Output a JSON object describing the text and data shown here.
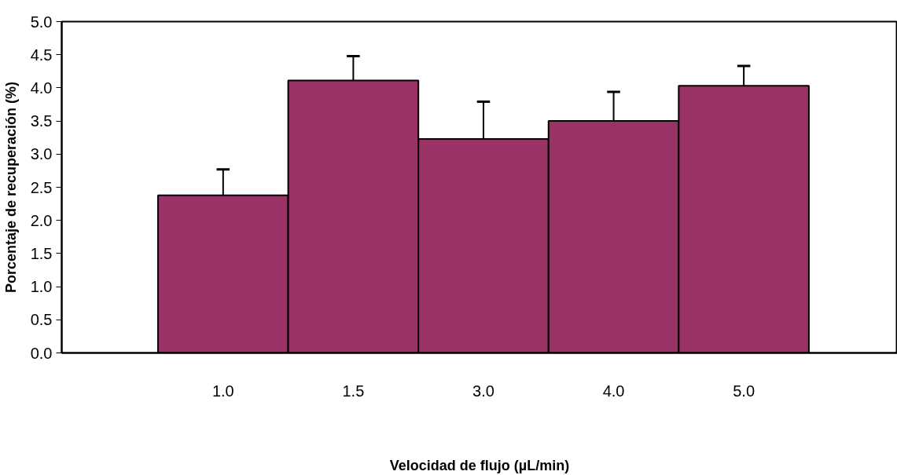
{
  "chart_data": {
    "type": "bar",
    "xlabel": "Velocidad de flujo (µL/min)",
    "ylabel": "Porcentaje de recuperación (%)",
    "categories": [
      "1.0",
      "1.5",
      "3.0",
      "4.0",
      "5.0"
    ],
    "values": [
      2.38,
      4.11,
      3.23,
      3.5,
      4.03
    ],
    "errors": [
      [
        2.38,
        2.77
      ],
      [
        4.11,
        4.48
      ],
      [
        3.23,
        3.79
      ],
      [
        3.5,
        3.94
      ],
      [
        4.03,
        4.33
      ]
    ],
    "color": "#993366",
    "ylim": [
      0,
      5
    ],
    "yticks": [
      {
        "value": 0,
        "label": "0.0"
      },
      {
        "value": 0.5,
        "label": "0.5"
      },
      {
        "value": 1,
        "label": "1.0"
      },
      {
        "value": 1.5,
        "label": "1.5"
      },
      {
        "value": 2,
        "label": "2.0"
      },
      {
        "value": 2.5,
        "label": "2.5"
      },
      {
        "value": 3,
        "label": "3.0"
      },
      {
        "value": 3.5,
        "label": "3.5"
      },
      {
        "value": 4,
        "label": "4.0"
      },
      {
        "value": 4.5,
        "label": "4.5"
      },
      {
        "value": 5,
        "label": "5.0"
      }
    ],
    "grid": false
  }
}
